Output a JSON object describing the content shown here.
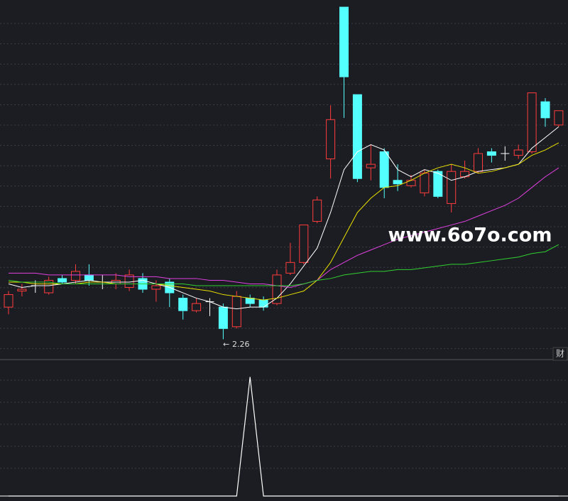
{
  "chart_data": [
    {
      "type": "candlestick",
      "watermark": "www.6o7o.com",
      "tab_label": "财",
      "up_color": "#ff3c3c",
      "down_color": "#54ffff",
      "flat_color": "#ffffff",
      "ylim": [
        2.15,
        4.16
      ],
      "open": [
        2.44,
        2.53,
        2.56,
        2.52,
        2.6,
        2.59,
        2.62,
        2.58,
        2.57,
        2.55,
        2.6,
        2.54,
        2.58,
        2.49,
        2.42,
        2.47,
        2.44,
        2.33,
        2.49,
        2.48,
        2.46,
        2.63,
        2.69,
        2.92,
        3.27,
        4.12,
        3.63,
        3.22,
        3.31,
        3.15,
        3.12,
        3.08,
        3.2,
        3.02,
        3.17,
        3.2,
        3.31,
        3.3,
        3.29,
        3.31,
        3.59,
        3.46
      ],
      "high": [
        2.53,
        2.57,
        2.59,
        2.61,
        2.62,
        2.68,
        2.68,
        2.62,
        2.63,
        2.65,
        2.63,
        2.59,
        2.6,
        2.51,
        2.49,
        2.49,
        2.46,
        2.53,
        2.51,
        2.5,
        2.65,
        2.8,
        2.9,
        3.06,
        3.57,
        4.12,
        3.63,
        3.35,
        3.33,
        3.24,
        3.18,
        3.21,
        3.21,
        3.24,
        3.26,
        3.33,
        3.33,
        3.34,
        3.35,
        3.64,
        3.61,
        3.54
      ],
      "low": [
        2.4,
        2.5,
        2.52,
        2.51,
        2.57,
        2.57,
        2.56,
        2.54,
        2.54,
        2.53,
        2.52,
        2.47,
        2.44,
        2.37,
        2.41,
        2.39,
        2.26,
        2.32,
        2.44,
        2.42,
        2.45,
        2.62,
        2.68,
        2.91,
        3.16,
        3.5,
        3.14,
        3.15,
        3.05,
        3.09,
        3.11,
        3.06,
        3.05,
        2.97,
        3.16,
        3.19,
        3.25,
        3.26,
        3.27,
        3.3,
        3.45,
        3.45
      ],
      "close": [
        2.51,
        2.54,
        2.56,
        2.59,
        2.58,
        2.64,
        2.59,
        2.58,
        2.59,
        2.62,
        2.54,
        2.56,
        2.52,
        2.42,
        2.46,
        2.47,
        2.32,
        2.5,
        2.46,
        2.44,
        2.62,
        2.69,
        2.9,
        3.04,
        3.49,
        3.73,
        3.16,
        3.24,
        3.11,
        3.13,
        3.15,
        3.19,
        3.06,
        3.2,
        3.2,
        3.3,
        3.29,
        3.3,
        3.32,
        3.64,
        3.5,
        3.54
      ],
      "series": [
        {
          "color": "#ffffff",
          "values": [
            2.57,
            2.55,
            2.56,
            2.56,
            2.57,
            2.58,
            2.59,
            2.58,
            2.58,
            2.58,
            2.59,
            2.57,
            2.55,
            2.52,
            2.49,
            2.47,
            2.44,
            2.43,
            2.44,
            2.44,
            2.49,
            2.57,
            2.67,
            2.77,
            2.97,
            3.21,
            3.31,
            3.35,
            3.32,
            3.21,
            3.17,
            3.21,
            3.19,
            3.15,
            3.17,
            3.2,
            3.21,
            3.22,
            3.24,
            3.33,
            3.39,
            3.45
          ]
        },
        {
          "color": "#e8e000",
          "values": [
            2.58,
            2.58,
            2.57,
            2.57,
            2.57,
            2.57,
            2.58,
            2.58,
            2.57,
            2.57,
            2.57,
            2.57,
            2.56,
            2.55,
            2.54,
            2.53,
            2.51,
            2.5,
            2.49,
            2.48,
            2.49,
            2.51,
            2.53,
            2.59,
            2.69,
            2.83,
            2.97,
            3.05,
            3.11,
            3.12,
            3.15,
            3.19,
            3.22,
            3.24,
            3.22,
            3.19,
            3.2,
            3.22,
            3.24,
            3.29,
            3.32,
            3.36
          ]
        },
        {
          "color": "#e040e0",
          "values": [
            2.63,
            2.63,
            2.63,
            2.62,
            2.62,
            2.62,
            2.62,
            2.62,
            2.62,
            2.61,
            2.61,
            2.61,
            2.6,
            2.6,
            2.6,
            2.59,
            2.59,
            2.58,
            2.57,
            2.57,
            2.56,
            2.55,
            2.57,
            2.59,
            2.65,
            2.69,
            2.73,
            2.76,
            2.79,
            2.82,
            2.84,
            2.86,
            2.88,
            2.9,
            2.92,
            2.95,
            2.98,
            3.01,
            3.05,
            3.11,
            3.17,
            3.22
          ]
        },
        {
          "color": "#30d030",
          "values": [
            2.59,
            2.58,
            2.58,
            2.58,
            2.57,
            2.57,
            2.57,
            2.57,
            2.57,
            2.57,
            2.57,
            2.57,
            2.57,
            2.57,
            2.56,
            2.56,
            2.56,
            2.56,
            2.56,
            2.56,
            2.56,
            2.56,
            2.57,
            2.59,
            2.6,
            2.62,
            2.63,
            2.64,
            2.64,
            2.65,
            2.65,
            2.66,
            2.67,
            2.68,
            2.68,
            2.69,
            2.7,
            2.71,
            2.72,
            2.74,
            2.75,
            2.79
          ]
        }
      ]
    },
    {
      "type": "line",
      "color": "#ffffff",
      "ylim": [
        0,
        1.14
      ],
      "values": [
        0,
        0,
        0,
        0,
        0,
        0,
        0,
        0,
        0,
        0,
        0,
        0,
        0,
        0,
        0,
        0,
        0,
        0,
        1,
        0,
        0,
        0,
        0,
        0,
        0,
        0,
        0,
        0,
        0,
        0,
        0,
        0,
        0,
        0,
        0,
        0,
        0,
        0,
        0,
        0,
        0,
        0
      ]
    }
  ]
}
